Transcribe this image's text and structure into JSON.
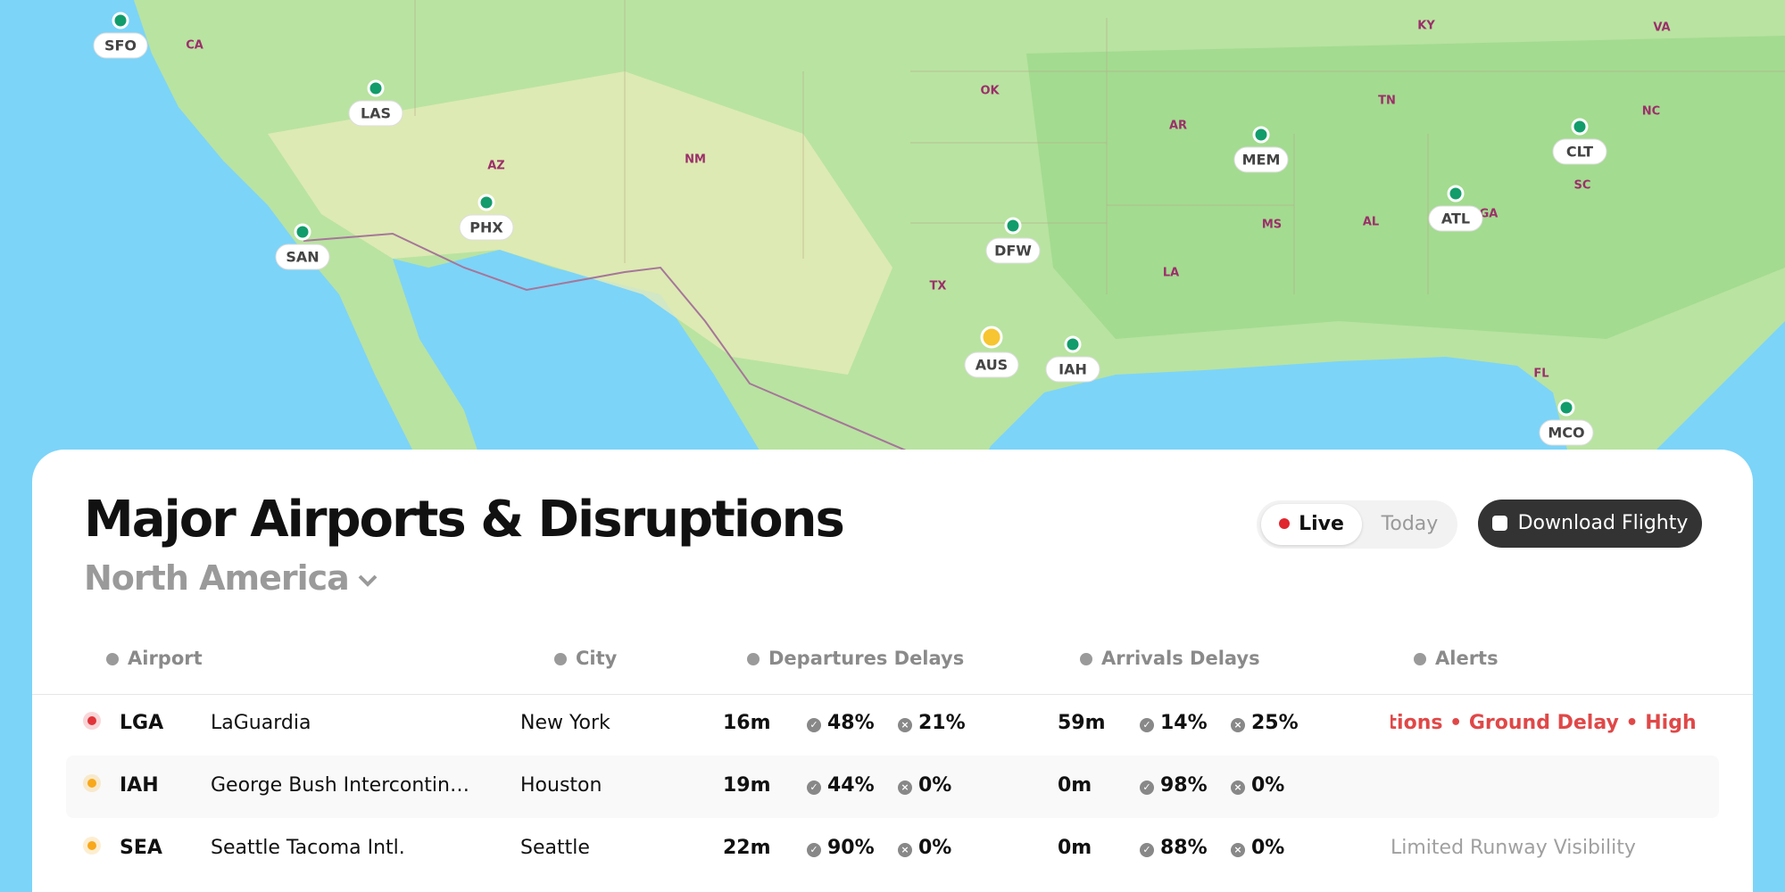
{
  "map": {
    "airports": [
      {
        "code": "SFO",
        "color": "#129c6b"
      },
      {
        "code": "LAS",
        "color": "#129c6b"
      },
      {
        "code": "PHX",
        "color": "#129c6b"
      },
      {
        "code": "SAN",
        "color": "#129c6b"
      },
      {
        "code": "DFW",
        "color": "#129c6b"
      },
      {
        "code": "AUS",
        "color": "#f7c531"
      },
      {
        "code": "IAH",
        "color": "#129c6b"
      },
      {
        "code": "MEM",
        "color": "#129c6b"
      },
      {
        "code": "ATL",
        "color": "#129c6b"
      },
      {
        "code": "CLT",
        "color": "#129c6b"
      },
      {
        "code": "MCO",
        "color": "#129c6b"
      }
    ],
    "labels": [
      "CA",
      "AZ",
      "NM",
      "OK",
      "TX",
      "AR",
      "LA",
      "MS",
      "AL",
      "TN",
      "KY",
      "VA",
      "NC",
      "SC",
      "GA",
      "FL"
    ]
  },
  "header": {
    "title": "Major Airports & Disruptions",
    "region": "North America"
  },
  "toggle": {
    "live": "Live",
    "today": "Today"
  },
  "download": "Download Flighty",
  "table": {
    "columns": [
      "Airport",
      "City",
      "Departures Delays",
      "Arrivals Delays",
      "Alerts"
    ],
    "rows": [
      {
        "color": "#e0343a",
        "code": "LGA",
        "name": "LaGuardia",
        "city": "New York",
        "dep": [
          "16m",
          "48%",
          "21%"
        ],
        "arr": [
          "59m",
          "14%",
          "25%"
        ],
        "alerts": [
          "Cancellations",
          "Ground Delay",
          "High Cancellations"
        ],
        "alert_color": "#e04848"
      },
      {
        "color": "#f7a81b",
        "code": "IAH",
        "name": "George Bush Intercontin…",
        "city": "Houston",
        "dep": [
          "19m",
          "44%",
          "0%"
        ],
        "arr": [
          "0m",
          "98%",
          "0%"
        ],
        "alerts": [],
        "alert_color": "#999999"
      },
      {
        "color": "#f7a81b",
        "code": "SEA",
        "name": "Seattle Tacoma Intl.",
        "city": "Seattle",
        "dep": [
          "22m",
          "90%",
          "0%"
        ],
        "arr": [
          "0m",
          "88%",
          "0%"
        ],
        "alerts": [
          "Limited Runway Visibility"
        ],
        "alert_color": "#a0a0a0"
      }
    ]
  }
}
